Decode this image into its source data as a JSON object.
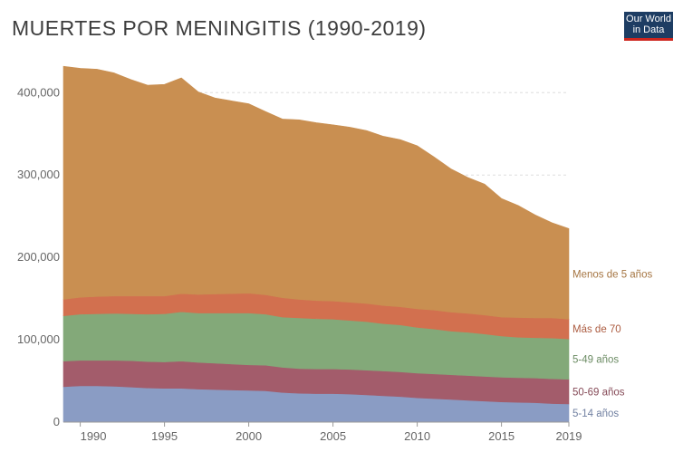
{
  "title": "MUERTES POR MENINGITIS (1990-2019)",
  "logo": {
    "line1": "Our World",
    "line2": "in Data"
  },
  "chart_data": {
    "type": "area",
    "stacked": true,
    "title": "MUERTES POR MENINGITIS (1990-2019)",
    "x": [
      1989,
      1990,
      1991,
      1992,
      1993,
      1994,
      1995,
      1996,
      1997,
      1998,
      1999,
      2000,
      2001,
      2002,
      2003,
      2004,
      2005,
      2006,
      2007,
      2008,
      2009,
      2010,
      2011,
      2012,
      2013,
      2014,
      2015,
      2016,
      2017,
      2018,
      2019
    ],
    "xlim": [
      1989,
      2019
    ],
    "ylim": [
      0,
      430000
    ],
    "y_ticks": [
      0,
      100000,
      200000,
      300000,
      400000
    ],
    "y_tick_labels": [
      "0",
      "100,000",
      "200,000",
      "300,000",
      "400,000"
    ],
    "x_ticks": [
      1990,
      1995,
      2000,
      2005,
      2010,
      2015,
      2019
    ],
    "x_tick_labels": [
      "1990",
      "1995",
      "2000",
      "2005",
      "2010",
      "2015",
      "2019"
    ],
    "grid": "horizontal dashed",
    "legend": "inline labels at right end",
    "series": [
      {
        "name": "5-14 años",
        "color": "#8a9cc4",
        "values": [
          43000,
          44000,
          44000,
          43500,
          42500,
          41500,
          41000,
          41000,
          40000,
          39500,
          39000,
          38500,
          38000,
          36000,
          35000,
          34500,
          34500,
          34000,
          33000,
          32000,
          31000,
          29500,
          28500,
          27500,
          26500,
          25500,
          24500,
          24000,
          23500,
          22500,
          22000
        ]
      },
      {
        "name": "50-69 años",
        "color": "#a35c6b",
        "values": [
          31000,
          31000,
          31000,
          31500,
          32000,
          32000,
          32000,
          33000,
          32500,
          32000,
          31500,
          31000,
          31000,
          30500,
          30000,
          30000,
          30000,
          30000,
          30000,
          30000,
          30000,
          30000,
          30000,
          30000,
          30000,
          30000,
          30000,
          30000,
          30000,
          30000,
          30000
        ]
      },
      {
        "name": "5-49 años",
        "color": "#83a979",
        "values": [
          55000,
          56000,
          56500,
          57000,
          57000,
          57500,
          58500,
          60000,
          60000,
          61000,
          62000,
          63000,
          62000,
          61000,
          61500,
          61000,
          60500,
          59500,
          59000,
          57500,
          57000,
          55500,
          54500,
          53000,
          52500,
          51500,
          50000,
          49000,
          49000,
          49500,
          49000
        ]
      },
      {
        "name": "Más de 70",
        "color": "#d2704f",
        "values": [
          20000,
          20500,
          21000,
          21000,
          21500,
          22000,
          21500,
          22000,
          22500,
          23000,
          23500,
          24000,
          23500,
          23500,
          22500,
          22000,
          22000,
          22000,
          22000,
          22000,
          22000,
          22500,
          23000,
          23000,
          23000,
          23000,
          23000,
          24000,
          24000,
          24500,
          24000
        ]
      },
      {
        "name": "Menos de 5 años",
        "color": "#c98f51",
        "values": [
          283000,
          278000,
          276000,
          271000,
          263000,
          256000,
          257000,
          262000,
          246000,
          238000,
          234000,
          230000,
          222500,
          217000,
          218000,
          216000,
          214000,
          212500,
          210000,
          205500,
          203000,
          198000,
          186000,
          174000,
          165000,
          159000,
          144000,
          136000,
          125000,
          115500,
          110000
        ]
      }
    ]
  }
}
